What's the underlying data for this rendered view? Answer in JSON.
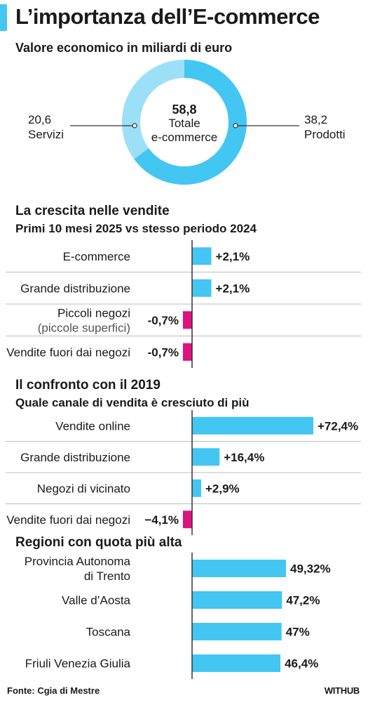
{
  "header": {
    "title": "L’importanza dell’E-commerce",
    "subtitle": "Valore economico in miliardi di euro"
  },
  "colors": {
    "accent": "#43c6f2",
    "light": "#9be0f7",
    "positive": "#43c6f2",
    "negative": "#e0117f",
    "separator": "#bdbdbd"
  },
  "donut": {
    "total_value": "58,8",
    "total_label_1": "Totale",
    "total_label_2": "e-commerce",
    "left_value": "20,6",
    "left_label": "Servizi",
    "right_value": "38,2",
    "right_label": "Prodotti"
  },
  "sections": {
    "growth": {
      "title": "La crescita nelle vendite",
      "subtitle": "Primi 10 mesi 2025 vs stesso periodo 2024"
    },
    "compare": {
      "title": "Il confronto con il 2019",
      "subtitle": "Quale canale di vendita è cresciuto di più"
    },
    "regions": {
      "title": "Regioni con quota più alta"
    }
  },
  "footer": {
    "source": "Fonte: Cgia di Mestre",
    "brand": "WITHUB"
  },
  "chart_data": [
    {
      "type": "pie",
      "title": "Valore economico in miliardi di euro",
      "categories": [
        "Servizi",
        "Prodotti"
      ],
      "values": [
        20.6,
        38.2
      ],
      "total": 58.8
    },
    {
      "type": "bar",
      "title": "La crescita nelle vendite",
      "subtitle": "Primi 10 mesi 2025 vs stesso periodo 2024",
      "categories": [
        "E-commerce",
        "Grande distribuzione",
        "Piccoli negozi|(piccole superfici)",
        "Vendite fuori dai negozi"
      ],
      "values": [
        2.1,
        2.1,
        -0.7,
        -0.7
      ],
      "labels": [
        "+2,1%",
        "+2,1%",
        "-0,7%",
        "-0,7%"
      ],
      "max": 13.2
    },
    {
      "type": "bar",
      "title": "Il confronto con il 2019",
      "subtitle": "Quale canale di vendita è cresciuto di più",
      "categories": [
        "Vendite online",
        "Grande distribuzione",
        "Negozi di vicinato",
        "Vendite fuori dai negozi"
      ],
      "values": [
        72.4,
        16.4,
        2.9,
        -4.1
      ],
      "labels": [
        "+72,4%",
        "+16,4%",
        "+2,9%",
        "−4,1%"
      ],
      "max": 72.4
    },
    {
      "type": "bar",
      "title": "Regioni con quota più alta",
      "categories": [
        "Provincia Autonoma|di Trento",
        "Valle d’Aosta",
        "Toscana",
        "Friuli Venezia Giulia"
      ],
      "values": [
        49.32,
        47.2,
        47,
        46.4
      ],
      "labels": [
        "49,32%",
        "47,2%",
        "47%",
        "46,4%"
      ],
      "max": 49.32
    }
  ]
}
